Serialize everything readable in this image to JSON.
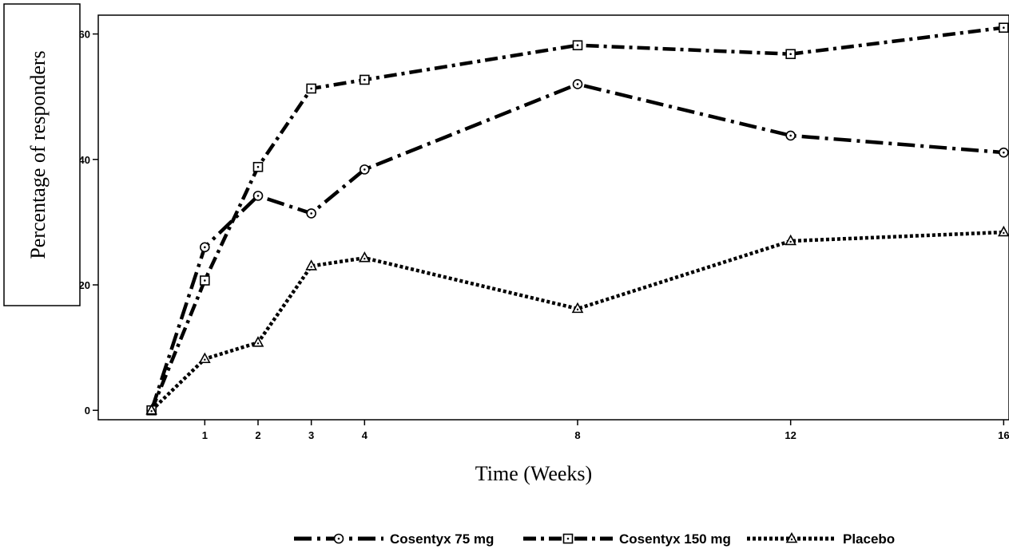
{
  "chart_data": {
    "type": "line",
    "xlabel": "Time (Weeks)",
    "ylabel": "Percentage of responders",
    "x": [
      0,
      1,
      2,
      3,
      4,
      8,
      12,
      16
    ],
    "x_ticks": [
      1,
      2,
      3,
      4,
      8,
      12,
      16
    ],
    "y_ticks": [
      0,
      20,
      40,
      60
    ],
    "xlim": [
      -1,
      16.1
    ],
    "ylim": [
      -1.5,
      63
    ],
    "grid": false,
    "legend_position": "bottom",
    "series": [
      {
        "name": "Cosentyx 75 mg",
        "values": [
          0,
          26,
          34.2,
          31.4,
          38.4,
          52,
          43.8,
          41.1
        ],
        "marker": "circle",
        "dash": "long-dash-dot",
        "color": "#000000"
      },
      {
        "name": "Cosentyx 150 mg",
        "values": [
          0,
          20.7,
          38.8,
          51.3,
          52.7,
          58.2,
          56.8,
          61
        ],
        "marker": "square",
        "dash": "dash-dot",
        "color": "#000000"
      },
      {
        "name": "Placebo",
        "values": [
          0,
          8.2,
          10.8,
          23,
          24.3,
          16.2,
          27,
          28.4
        ],
        "marker": "triangle",
        "dash": "dotted",
        "color": "#000000"
      }
    ]
  }
}
